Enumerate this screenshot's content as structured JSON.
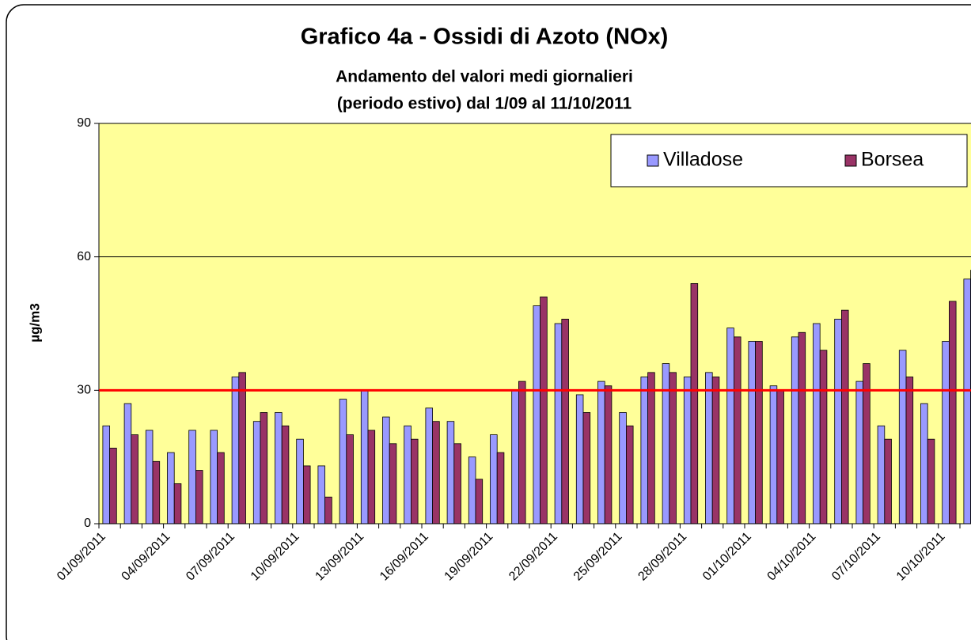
{
  "chart_data": {
    "type": "bar",
    "title": "Grafico 4a - Ossidi di Azoto (NOx)",
    "subtitle": [
      "Andamento del valori medi giornalieri",
      "(periodo estivo) dal 1/09 al 11/10/2011"
    ],
    "y_label": "µg/m3",
    "categories": [
      "01/09/2011",
      null,
      null,
      "04/09/2011",
      null,
      null,
      "07/09/2011",
      null,
      null,
      "10/09/2011",
      null,
      null,
      "13/09/2011",
      null,
      null,
      "16/09/2011",
      null,
      null,
      "19/09/2011",
      null,
      null,
      "22/09/2011",
      null,
      null,
      "25/09/2011",
      null,
      null,
      "28/09/2011",
      null,
      null,
      "01/10/2011",
      null,
      null,
      "04/10/2011",
      null,
      null,
      "07/10/2011",
      null,
      null,
      "10/10/2011",
      null
    ],
    "series": [
      {
        "name": "Villadose",
        "color": "#9999ff",
        "values": [
          22,
          27,
          21,
          16,
          21,
          21,
          33,
          23,
          25,
          19,
          13,
          28,
          30,
          24,
          22,
          26,
          23,
          15,
          20,
          30,
          49,
          45,
          29,
          32,
          25,
          33,
          36,
          33,
          34,
          44,
          41,
          31,
          42,
          45,
          46,
          32,
          22,
          39,
          27,
          41,
          55
        ]
      },
      {
        "name": "Borsea",
        "color": "#993366",
        "values": [
          17,
          20,
          14,
          9,
          12,
          16,
          34,
          25,
          22,
          13,
          6,
          20,
          21,
          18,
          19,
          23,
          18,
          10,
          16,
          32,
          51,
          46,
          25,
          31,
          22,
          34,
          34,
          54,
          33,
          42,
          41,
          30,
          43,
          39,
          48,
          36,
          19,
          33,
          19,
          50,
          57
        ]
      }
    ],
    "ylim": [
      0,
      90
    ],
    "yticks": [
      0,
      30,
      60,
      90
    ],
    "grid": true,
    "reference_line": {
      "value": 30,
      "color": "#ff0000"
    },
    "legend": "top-right",
    "background": "#ffff99"
  }
}
